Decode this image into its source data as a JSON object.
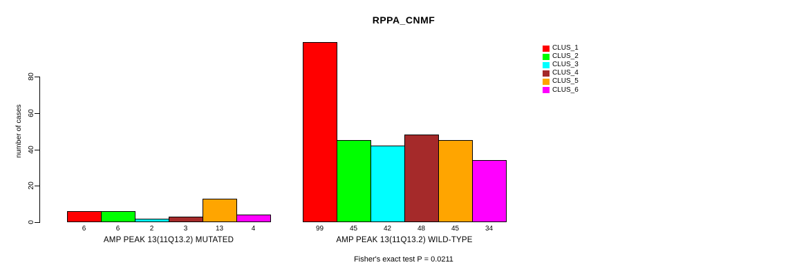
{
  "chart_data": {
    "type": "bar",
    "title": "RPPA_CNMF",
    "xlabel": "",
    "ylabel": "number of cases",
    "yticks": [
      0,
      20,
      40,
      60,
      80
    ],
    "ylim": [
      0,
      99
    ],
    "grid": false,
    "legend_position": "right",
    "series_labels": [
      "CLUS_1",
      "CLUS_2",
      "CLUS_3",
      "CLUS_4",
      "CLUS_5",
      "CLUS_6"
    ],
    "series_colors": [
      "#ff0000",
      "#00ff00",
      "#00ffff",
      "#a52a2a",
      "#ffa500",
      "#ff00ff"
    ],
    "groups": [
      {
        "label": "AMP PEAK 13(11Q13.2) MUTATED",
        "values": [
          6,
          6,
          2,
          3,
          13,
          4
        ]
      },
      {
        "label": "AMP PEAK 13(11Q13.2) WILD-TYPE",
        "values": [
          99,
          45,
          42,
          48,
          45,
          34
        ]
      }
    ],
    "annotation": "Fisher's exact test P = 0.0211"
  }
}
